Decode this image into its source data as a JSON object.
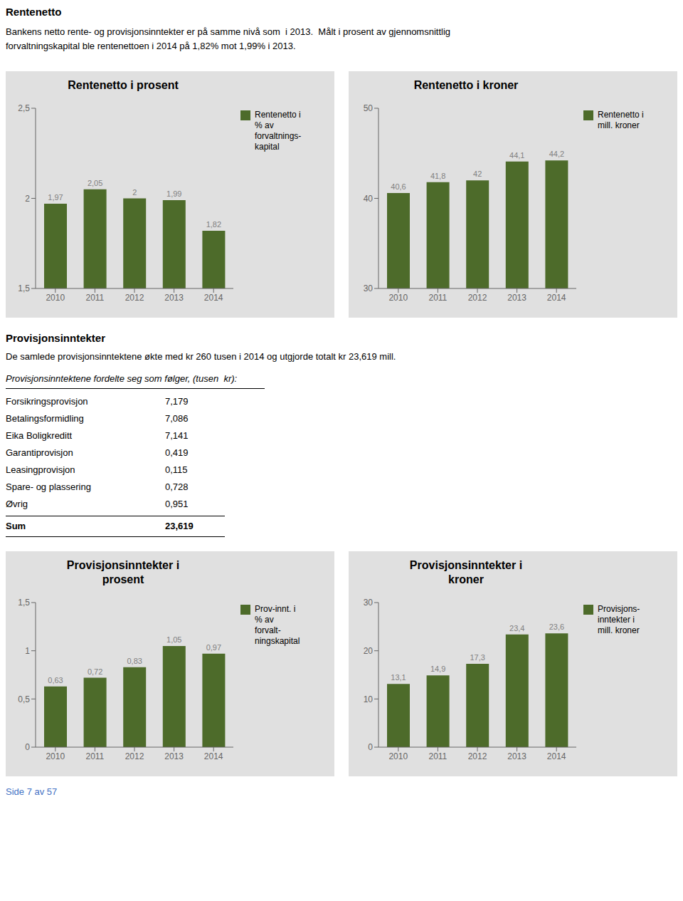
{
  "title": "Rentenetto",
  "subtitle": [
    "Bankens netto rente- og provisjonsinntekter er på samme nivå som  i 2013.  Målt i prosent av gjennomsnittlig",
    "forvaltningskapital ble rentenettoen i 2014 på 1,82% mot 1,99% i 2013."
  ],
  "chart_data": [
    {
      "type": "bar",
      "title": "Rentenetto i prosent",
      "categories": [
        "2010",
        "2011",
        "2012",
        "2013",
        "2014"
      ],
      "series": [
        {
          "name": "Rentenetto i\n% av\nforvaltnings-\nkapital",
          "color": "#4d6b2a",
          "values": [
            1.97,
            2.05,
            2.0,
            1.99,
            1.82
          ],
          "value_labels": [
            "1,97",
            "2,05",
            "2",
            "1,99",
            "1,82"
          ]
        }
      ],
      "ylim": [
        1.5,
        2.5
      ],
      "yticks": [
        {
          "value": 1.5,
          "label": "1,5"
        },
        2,
        {
          "value": 2.5,
          "label": "2,5"
        }
      ],
      "data_labels": true,
      "grid": false,
      "legend": "right"
    },
    {
      "type": "bar",
      "title": "Rentenetto i kroner",
      "categories": [
        "2010",
        "2011",
        "2012",
        "2013",
        "2014"
      ],
      "series": [
        {
          "name": "Rentenetto i\nmill. kroner",
          "color": "#4d6b2a",
          "values": [
            40.6,
            41.8,
            42.0,
            44.1,
            44.2
          ],
          "value_labels": [
            "40,6",
            "41,8",
            "42",
            "44,1",
            "44,2"
          ]
        }
      ],
      "ylim": [
        30,
        50
      ],
      "yticks": [
        30,
        40,
        50
      ],
      "data_labels": true,
      "grid": false,
      "legend": "right"
    },
    {
      "type": "bar",
      "title": "Provisjonsinntekter i\nprosent",
      "categories": [
        "2010",
        "2011",
        "2012",
        "2013",
        "2014"
      ],
      "series": [
        {
          "name": "Prov-innt. i\n% av\nforvalt-\nningskapital",
          "color": "#4d6b2a",
          "values": [
            0.63,
            0.72,
            0.83,
            1.05,
            0.97
          ],
          "value_labels": [
            "0,63",
            "0,72",
            "0,83",
            "1,05",
            "0,97"
          ]
        }
      ],
      "ylim": [
        0,
        1.5
      ],
      "yticks": [
        0,
        {
          "value": 0.5,
          "label": "0,5"
        },
        1,
        {
          "value": 1.5,
          "label": "1,5"
        }
      ],
      "data_labels": true,
      "grid": false,
      "legend": "right"
    },
    {
      "type": "bar",
      "title": "Provisjonsinntekter i\nkroner",
      "categories": [
        "2010",
        "2011",
        "2012",
        "2013",
        "2014"
      ],
      "series": [
        {
          "name": "Provisjons-\ninntekter i\nmill. kroner",
          "color": "#4d6b2a",
          "values": [
            13.1,
            14.9,
            17.3,
            23.4,
            23.6
          ],
          "value_labels": [
            "13,1",
            "14,9",
            "17,3",
            "23,4",
            "23,6"
          ]
        }
      ],
      "ylim": [
        0,
        30
      ],
      "yticks": [
        0,
        10,
        20,
        30
      ],
      "data_labels": true,
      "grid": false,
      "legend": "right"
    }
  ],
  "section_title": "Provisjonsinntekter",
  "section_subtitle": "De samlede provisjonsinntektene økte med kr 260 tusen i 2014 og utgjorde totalt kr 23,619 mill.",
  "table": {
    "header": "Provisjonsinntektene fordelte seg som følger, (tusen  kr):",
    "rows": [
      [
        "Forsikringsprovisjon",
        "7,179"
      ],
      [
        "Betalingsformidling",
        "7,086"
      ],
      [
        "Eika Boligkreditt",
        "7,141"
      ],
      [
        "Garantiprovisjon",
        "0,419"
      ],
      [
        "Leasingprovisjon",
        "0,115"
      ],
      [
        "Spare- og plassering",
        "0,728"
      ],
      [
        "Øvrig",
        "0,951"
      ]
    ],
    "sum": [
      "Sum",
      "23,619"
    ]
  },
  "footer": {
    "text": "Side 7 av 57",
    "color": "#4472c4"
  }
}
